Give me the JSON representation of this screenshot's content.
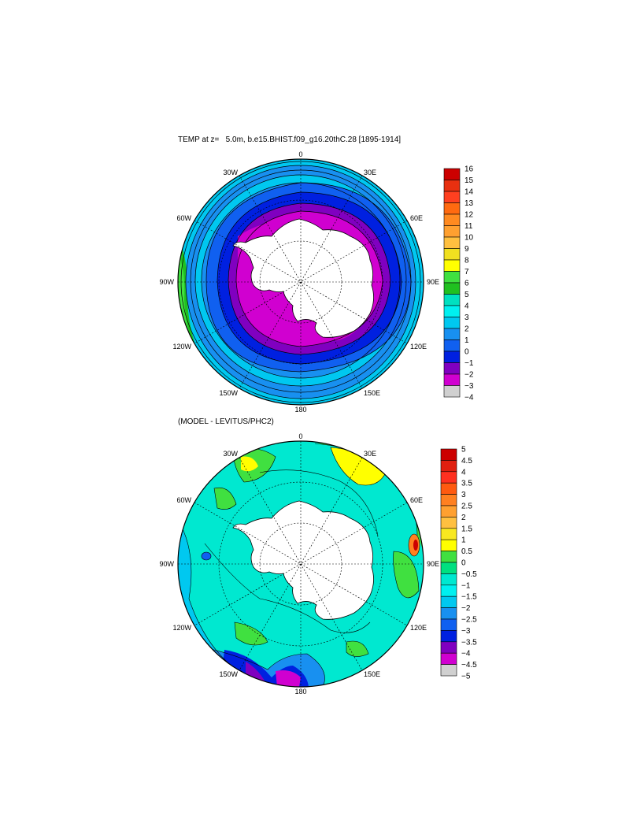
{
  "top_panel": {
    "title": "TEMP at z=   5.0m, b.e15.BHIST.f09_g16.20thC.28 [1895-1914]",
    "longitude_labels": {
      "n": "0",
      "ne30": "30E",
      "ne60": "60E",
      "e90": "90E",
      "se120": "120E",
      "se150": "150E",
      "s180": "180",
      "sw150": "150W",
      "sw120": "120W",
      "w90": "90W",
      "nw60": "60W",
      "nw30": "30W"
    },
    "colorbar": {
      "labels": [
        "16",
        "15",
        "14",
        "13",
        "12",
        "11",
        "10",
        "9",
        "8",
        "7",
        "6",
        "5",
        "4",
        "3",
        "2",
        "1",
        "0",
        "−1",
        "−2",
        "−3",
        "−4"
      ],
      "colors": [
        "#cc0000",
        "#e83010",
        "#ff4020",
        "#ff6a10",
        "#ff8a20",
        "#ffa030",
        "#ffc040",
        "#f0e020",
        "#ffff00",
        "#40e040",
        "#20c020",
        "#00e0c0",
        "#00f0f0",
        "#00c8f0",
        "#1890f0",
        "#1060f0",
        "#0020e0",
        "#8000c0",
        "#d000d0",
        "#d0d0d0",
        "#707070"
      ]
    }
  },
  "bottom_panel": {
    "title": "(MODEL - LEVITUS/PHC2)",
    "longitude_labels": {
      "n": "0",
      "ne30": "30E",
      "ne60": "60E",
      "e90": "90E",
      "se120": "120E",
      "se150": "150E",
      "s180": "180",
      "sw150": "150W",
      "sw120": "120W",
      "w90": "90W",
      "nw60": "60W",
      "nw30": "30W"
    },
    "colorbar": {
      "labels": [
        "5",
        "4.5",
        "4",
        "3.5",
        "3",
        "2.5",
        "2",
        "1.5",
        "1",
        "0.5",
        "0",
        "−0.5",
        "−1",
        "−1.5",
        "−2",
        "−2.5",
        "−3",
        "−3.5",
        "−4",
        "−4.5",
        "−5"
      ],
      "colors": [
        "#cc0000",
        "#e02010",
        "#ff3020",
        "#ff5a10",
        "#ff8020",
        "#ffa030",
        "#ffc040",
        "#f8e820",
        "#ffff00",
        "#40e040",
        "#00e080",
        "#00e8d0",
        "#00f0f0",
        "#00c8f0",
        "#1890f0",
        "#1060f0",
        "#0020e0",
        "#8000c0",
        "#d000d0",
        "#d0d0d0",
        "#707070"
      ]
    }
  }
}
